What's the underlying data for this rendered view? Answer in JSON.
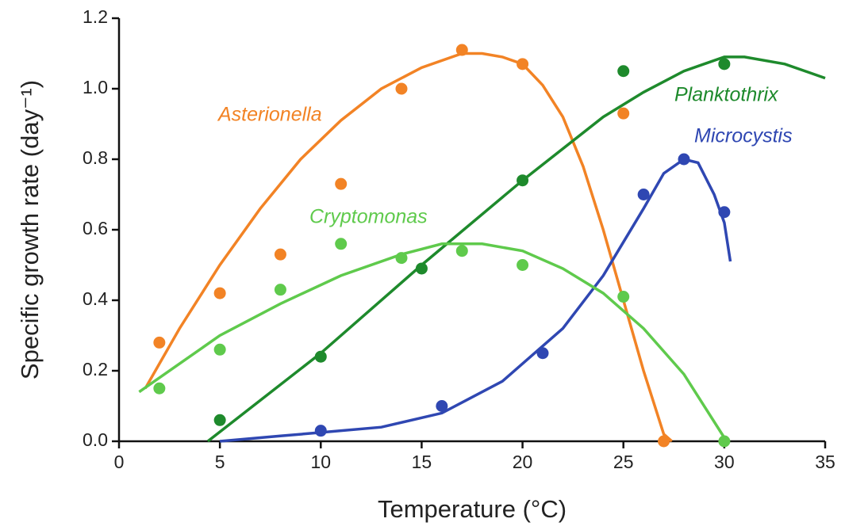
{
  "chart_data": {
    "type": "scatter",
    "xlabel": "Temperature (°C)",
    "ylabel": "Specific growth rate (day⁻¹)",
    "xlim": [
      0,
      35
    ],
    "ylim": [
      0,
      1.2
    ],
    "xticks": [
      0,
      5,
      10,
      15,
      20,
      25,
      30,
      35
    ],
    "yticks": [
      {
        "value": 0,
        "label": "0.0"
      },
      0.2,
      0.4,
      0.6,
      0.8,
      {
        "value": 1,
        "label": "1.0"
      },
      1.2
    ],
    "series": [
      {
        "name": "Asterionella",
        "color": "#f28325",
        "x": [
          2,
          5,
          8,
          11,
          14,
          17,
          20,
          25,
          27
        ],
        "values": [
          0.28,
          0.42,
          0.53,
          0.73,
          1.0,
          1.11,
          1.07,
          0.93,
          0.0
        ],
        "fit_x": [
          1.3,
          3,
          5,
          7,
          9,
          11,
          13,
          15,
          17,
          18,
          19,
          20,
          21,
          22,
          23,
          24,
          25,
          26,
          27,
          27.4
        ],
        "fit_values": [
          0.15,
          0.32,
          0.5,
          0.66,
          0.8,
          0.91,
          1.0,
          1.06,
          1.1,
          1.1,
          1.09,
          1.07,
          1.01,
          0.92,
          0.78,
          0.6,
          0.4,
          0.2,
          0.02,
          0
        ]
      },
      {
        "name": "Planktothrix",
        "color": "#1e8a2c",
        "x": [
          5,
          10,
          15,
          20,
          25,
          30
        ],
        "values": [
          0.06,
          0.24,
          0.49,
          0.74,
          1.05,
          1.07
        ],
        "fit_x": [
          4.4,
          10,
          15,
          20,
          24,
          26,
          28,
          30,
          31,
          33,
          35
        ],
        "fit_values": [
          0,
          0.25,
          0.5,
          0.74,
          0.92,
          0.99,
          1.05,
          1.09,
          1.09,
          1.07,
          1.03
        ]
      },
      {
        "name": "Microcystis",
        "color": "#2f47b2",
        "x": [
          10,
          16,
          21,
          26,
          28,
          30
        ],
        "values": [
          0.03,
          0.1,
          0.25,
          0.7,
          0.8,
          0.65
        ],
        "fit_x": [
          5,
          8,
          10,
          13,
          16,
          19,
          22,
          24,
          26,
          27,
          28,
          28.7,
          29.5,
          30,
          30.3
        ],
        "fit_values": [
          0,
          0.015,
          0.025,
          0.04,
          0.08,
          0.17,
          0.32,
          0.47,
          0.66,
          0.76,
          0.8,
          0.79,
          0.7,
          0.62,
          0.51
        ]
      },
      {
        "name": "Cryptomonas",
        "color": "#5fca4c",
        "x": [
          2,
          5,
          8,
          11,
          14,
          17,
          20,
          25,
          30
        ],
        "values": [
          0.15,
          0.26,
          0.43,
          0.56,
          0.52,
          0.54,
          0.5,
          0.41,
          0.0
        ],
        "fit_x": [
          1,
          3,
          5,
          8,
          11,
          14,
          16,
          18,
          20,
          22,
          24,
          26,
          28,
          30
        ],
        "fit_values": [
          0.14,
          0.22,
          0.3,
          0.39,
          0.47,
          0.53,
          0.56,
          0.56,
          0.54,
          0.49,
          0.42,
          0.32,
          0.19,
          0.01
        ]
      }
    ]
  }
}
